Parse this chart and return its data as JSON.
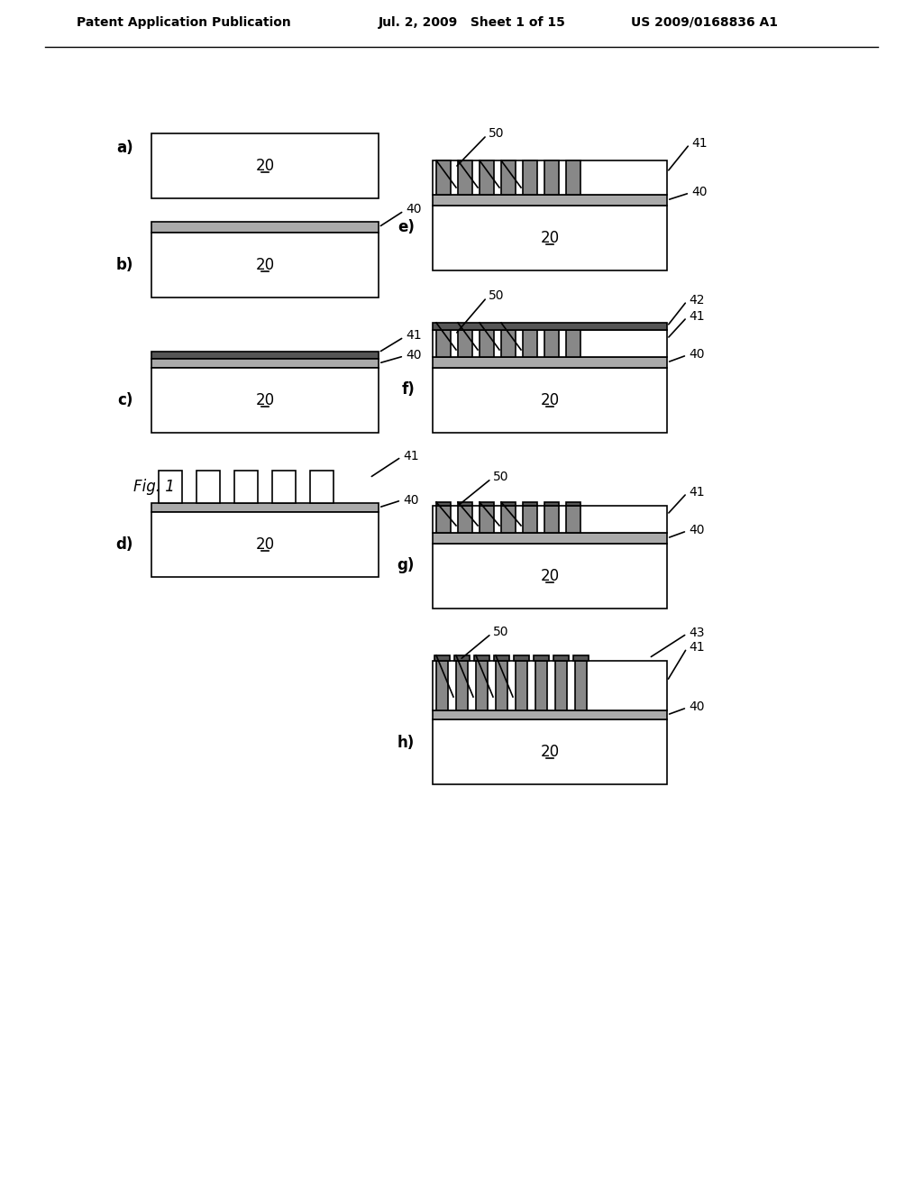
{
  "header_left": "Patent Application Publication",
  "header_mid": "Jul. 2, 2009   Sheet 1 of 15",
  "header_right": "US 2009/0168836 A1",
  "fig_label": "Fig. 1",
  "bg_color": "#ffffff",
  "line_color": "#000000"
}
